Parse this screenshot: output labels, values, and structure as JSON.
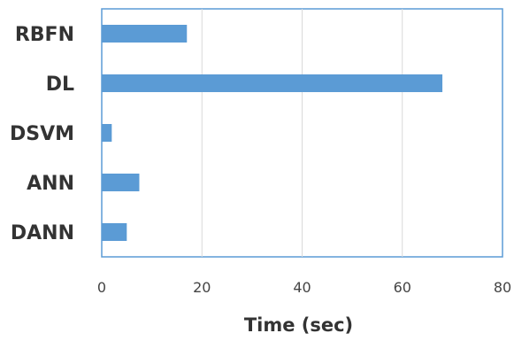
{
  "chart_data": {
    "type": "bar",
    "orientation": "horizontal",
    "categories": [
      "RBFN",
      "DL",
      "DSVM",
      "ANN",
      "DANN"
    ],
    "values": [
      17,
      68,
      2,
      7.5,
      5
    ],
    "xlabel": "Time (sec)",
    "ylabel": "",
    "xlim": [
      0,
      80
    ],
    "x_ticks": [
      "0",
      "20",
      "40",
      "60",
      "80"
    ],
    "grid": "vertical",
    "legend": "none",
    "colors": {
      "bar": "#5b9bd5",
      "grid": "#d9d9d9",
      "frame": "#5b9bd5"
    }
  }
}
